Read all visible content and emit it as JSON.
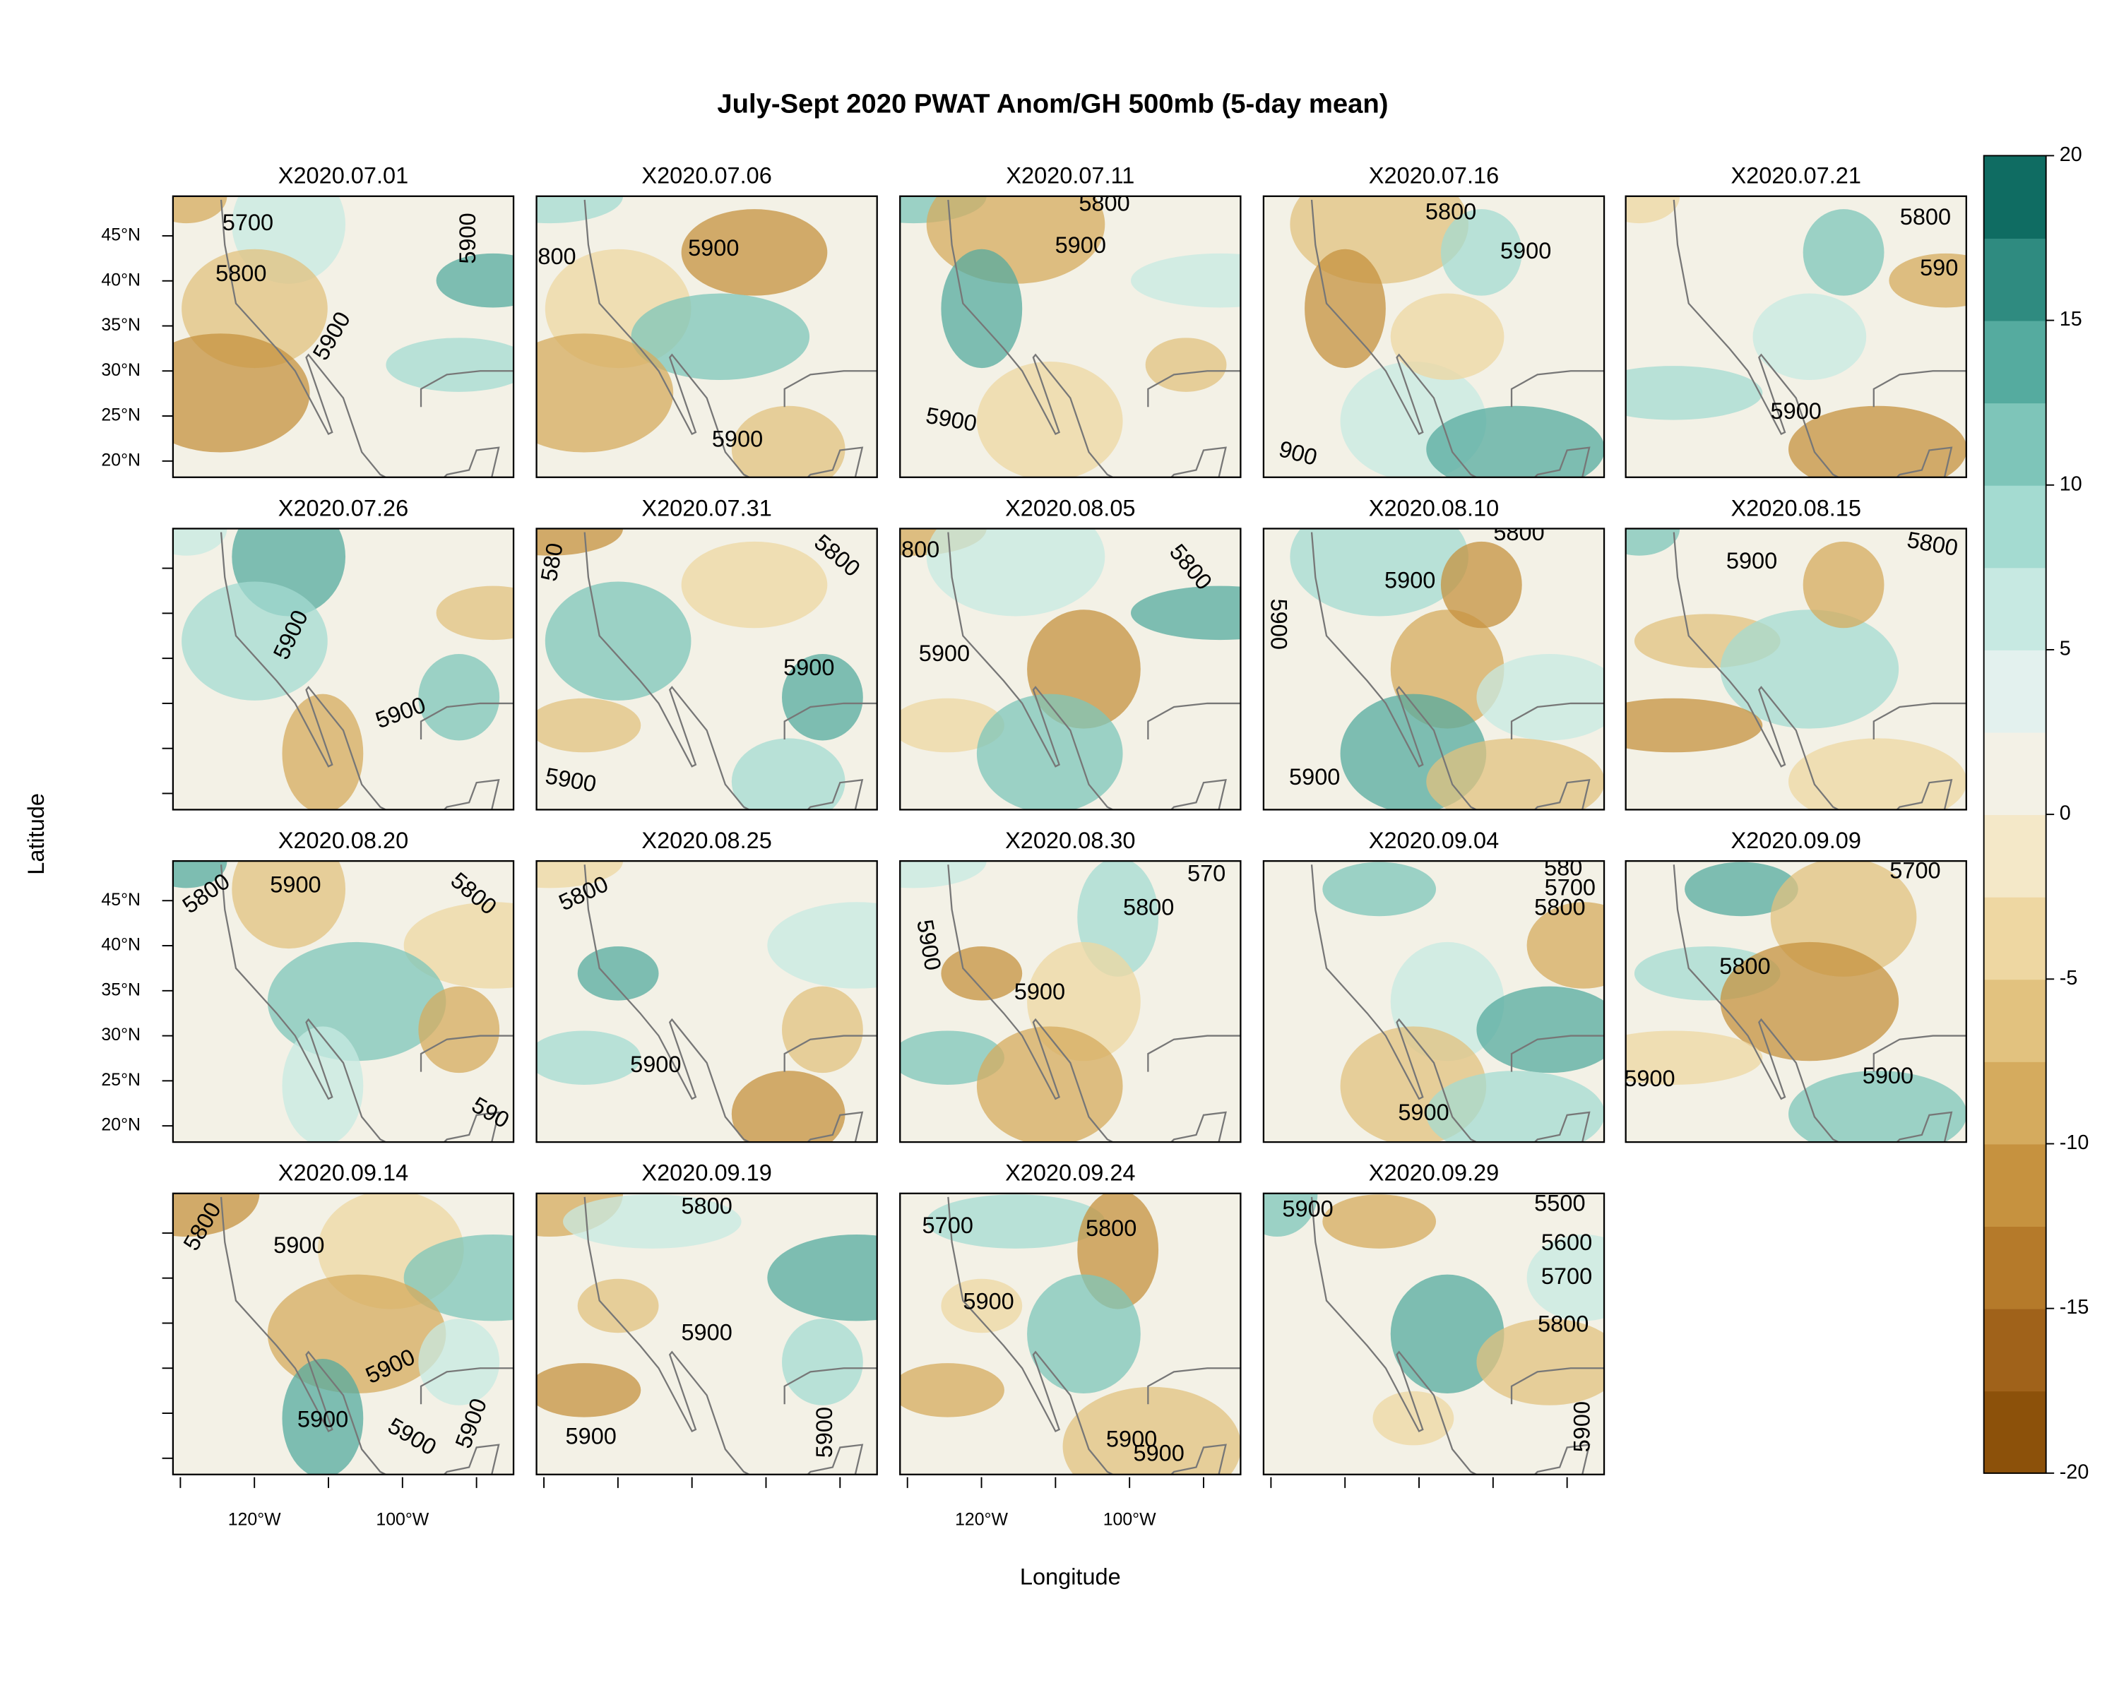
{
  "chart_data": {
    "type": "map-panels",
    "title": "July-Sept 2020 PWAT Anom/GH 500mb (5-day mean)",
    "x_label": "Longitude",
    "y_label": "Latitude",
    "xlim": [
      -131,
      -85
    ],
    "ylim": [
      18.2,
      49.4
    ],
    "xticks": [
      {
        "value": -120,
        "label": "120°W"
      },
      {
        "value": -100,
        "label": "100°W"
      }
    ],
    "xticks_minor": [
      -130,
      -110,
      -90
    ],
    "yticks": [
      {
        "value": 20,
        "label": "20°N"
      },
      {
        "value": 25,
        "label": "25°N"
      },
      {
        "value": 30,
        "label": "30°N"
      },
      {
        "value": 35,
        "label": "35°N"
      },
      {
        "value": 40,
        "label": "40°N"
      },
      {
        "value": 45,
        "label": "45°N"
      }
    ],
    "colorbar": {
      "clim": [
        -20,
        20
      ],
      "ticks": [
        -20,
        -15,
        -10,
        -5,
        0,
        5,
        10,
        15,
        20
      ],
      "colors": [
        "#8c510a",
        "#a0621a",
        "#b57a2a",
        "#c6923f",
        "#d5ab5e",
        "#e2c27f",
        "#eed7a2",
        "#f4e8c8",
        "#f3f1e6",
        "#e3f1ee",
        "#c7e9e2",
        "#a4dbd1",
        "#7ec5b9",
        "#55ab9f",
        "#2f8b80",
        "#0f6c62"
      ]
    },
    "panels": [
      {
        "title": "X2020.07.01",
        "contour_labels": [
          "5700",
          "5800",
          "5900",
          "5900"
        ]
      },
      {
        "title": "X2020.07.06",
        "contour_labels": [
          "800",
          "5900",
          "5900"
        ]
      },
      {
        "title": "X2020.07.11",
        "contour_labels": [
          "5800",
          "5900",
          "5900"
        ]
      },
      {
        "title": "X2020.07.16",
        "contour_labels": [
          "5800",
          "5900",
          "900"
        ]
      },
      {
        "title": "X2020.07.21",
        "contour_labels": [
          "5800",
          "590",
          "5900"
        ]
      },
      {
        "title": "X2020.07.26",
        "contour_labels": [
          "5900",
          "5900"
        ]
      },
      {
        "title": "X2020.07.31",
        "contour_labels": [
          "580",
          "5800",
          "5900",
          "5900"
        ]
      },
      {
        "title": "X2020.08.05",
        "contour_labels": [
          "800",
          "5800",
          "5900"
        ]
      },
      {
        "title": "X2020.08.10",
        "contour_labels": [
          "5800",
          "5900",
          "5900",
          "5900"
        ]
      },
      {
        "title": "X2020.08.15",
        "contour_labels": [
          "5900",
          "5800"
        ]
      },
      {
        "title": "X2020.08.20",
        "contour_labels": [
          "5800",
          "5900",
          "5800",
          "590"
        ]
      },
      {
        "title": "X2020.08.25",
        "contour_labels": [
          "5800",
          "5900"
        ]
      },
      {
        "title": "X2020.08.30",
        "contour_labels": [
          "570",
          "5800",
          "5900",
          "5900"
        ]
      },
      {
        "title": "X2020.09.04",
        "contour_labels": [
          "580",
          "5700",
          "5800",
          "5900"
        ]
      },
      {
        "title": "X2020.09.09",
        "contour_labels": [
          "5700",
          "5800",
          "5900",
          "5900"
        ]
      },
      {
        "title": "X2020.09.14",
        "contour_labels": [
          "5800",
          "5900",
          "5900",
          "5900",
          "5900",
          "5900"
        ]
      },
      {
        "title": "X2020.09.19",
        "contour_labels": [
          "5800",
          "5900",
          "5900",
          "5900"
        ]
      },
      {
        "title": "X2020.09.24",
        "contour_labels": [
          "5700",
          "5800",
          "5900",
          "5900",
          "5900"
        ]
      },
      {
        "title": "X2020.09.29",
        "contour_labels": [
          "5900",
          "5500",
          "5600",
          "5700",
          "5800",
          "5900"
        ]
      }
    ]
  }
}
